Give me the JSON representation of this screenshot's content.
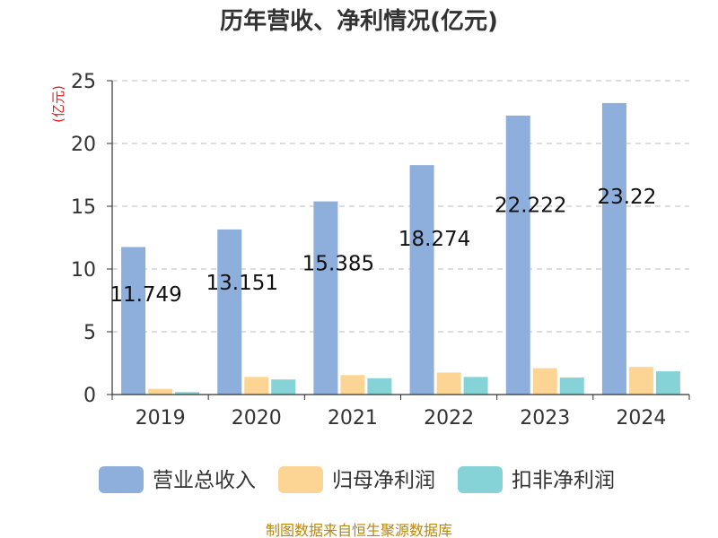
{
  "chart_data": {
    "type": "bar",
    "title": "历年营收、净利情况(亿元)",
    "unit_label": "(亿元)",
    "categories": [
      "2019",
      "2020",
      "2021",
      "2022",
      "2023",
      "2024"
    ],
    "series": [
      {
        "name": "营业总收入",
        "color": "#8eaedb",
        "values": [
          11.749,
          13.151,
          15.385,
          18.274,
          22.222,
          23.22
        ]
      },
      {
        "name": "归母净利润",
        "color": "#fcd594",
        "values": [
          0.45,
          1.4,
          1.55,
          1.75,
          2.1,
          2.2
        ]
      },
      {
        "name": "扣非净利润",
        "color": "#86d3d7",
        "values": [
          0.2,
          1.2,
          1.3,
          1.4,
          1.35,
          1.85
        ]
      }
    ],
    "data_labels": [
      "11.749",
      "13.151",
      "15.385",
      "18.274",
      "22.222",
      "23.22"
    ],
    "y_ticks": [
      "0",
      "5",
      "10",
      "15",
      "20",
      "25"
    ],
    "ylim": [
      0,
      25
    ],
    "grid": true,
    "legend_position": "bottom"
  },
  "source_text": "制图数据来自恒生聚源数据库"
}
